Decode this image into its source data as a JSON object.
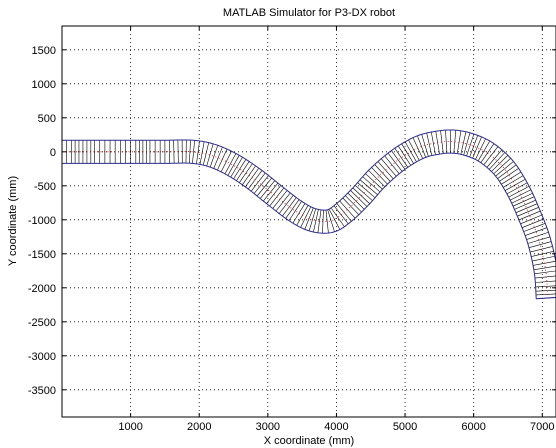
{
  "chart_data": {
    "type": "line",
    "title": "MATLAB Simulator for P3-DX robot",
    "xlabel": "X coordinate (mm)",
    "ylabel": "Y coordinate (mm)",
    "xlim": [
      0,
      7200
    ],
    "ylim": [
      -3900,
      1850
    ],
    "xticks": [
      1000,
      2000,
      3000,
      4000,
      5000,
      6000,
      7000
    ],
    "yticks": [
      1500,
      1000,
      500,
      0,
      -500,
      -1000,
      -1500,
      -2000,
      -2500,
      -3000,
      -3500
    ],
    "xtick_labels": [
      "1000",
      "2000",
      "3000",
      "4000",
      "5000",
      "6000",
      "7000"
    ],
    "ytick_labels": [
      "1500",
      "1000",
      "500",
      "0",
      "-500",
      "-1000",
      "-1500",
      "-2000",
      "-2500",
      "-3000",
      "-3500"
    ],
    "grid": true,
    "grid_style": "dotted",
    "robot_width_mm": 340,
    "colors": {
      "outline": "#2b2b8f",
      "hatch": "#000000",
      "center": "#cc0000"
    },
    "series": [
      {
        "x": [
          0,
          500,
          1000,
          1500,
          1900,
          2200,
          2500,
          2800,
          3100,
          3400,
          3650,
          3900,
          4100,
          4350,
          4600,
          4900,
          5200,
          5450,
          5700,
          5950,
          6200,
          6450,
          6650,
          6800,
          6950,
          7050,
          7080
        ],
        "y": [
          0,
          0,
          0,
          0,
          0,
          -60,
          -200,
          -400,
          -640,
          -870,
          -1000,
          -1020,
          -900,
          -660,
          -380,
          -120,
          60,
          130,
          150,
          100,
          -20,
          -250,
          -570,
          -900,
          -1300,
          -1750,
          -2150
        ]
      }
    ]
  }
}
